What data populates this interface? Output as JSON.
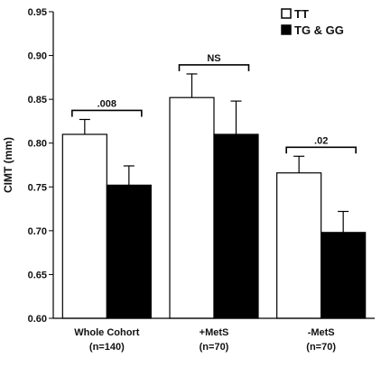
{
  "chart_data": {
    "type": "bar",
    "ylabel": "CIMT (mm)",
    "ylim": [
      0.6,
      0.95
    ],
    "yticks": [
      "0.60",
      "0.65",
      "0.70",
      "0.75",
      "0.80",
      "0.85",
      "0.90",
      "0.95"
    ],
    "ytick_values": [
      0.6,
      0.65,
      0.7,
      0.75,
      0.8,
      0.85,
      0.9,
      0.95
    ],
    "categories": [
      {
        "line1": "Whole Cohort",
        "line2": "(n=140)"
      },
      {
        "line1": "+MetS",
        "line2": "(n=70)"
      },
      {
        "line1": "-MetS",
        "line2": "(n=70)"
      }
    ],
    "series": [
      {
        "name": "TT",
        "color": "#ffffff",
        "values": [
          0.81,
          0.852,
          0.766
        ],
        "errors": [
          0.017,
          0.027,
          0.019
        ]
      },
      {
        "name": "TG & GG",
        "color": "#000000",
        "values": [
          0.752,
          0.81,
          0.698
        ],
        "errors": [
          0.022,
          0.038,
          0.024
        ]
      }
    ],
    "annotations": [
      ".008",
      "NS",
      ".02"
    ],
    "legend_position": "top-right",
    "grid": false
  }
}
